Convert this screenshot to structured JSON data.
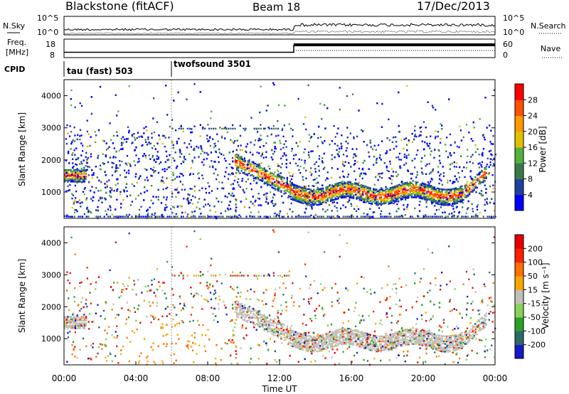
{
  "header": {
    "station": "Blackstone (fitACF)",
    "beam": "Beam 18",
    "date": "17/Dec/2013"
  },
  "noise_panel": {
    "left_label": "N.Sky",
    "right_label": "N.Search",
    "top_tick": "10^5",
    "bottom_tick": "10^0"
  },
  "freq_panel": {
    "label_line1": "Freq.",
    "label_line2": "[MHz]",
    "left_ticks": [
      "18",
      "8"
    ],
    "right_label": "Nave",
    "right_ticks": [
      "60",
      "0"
    ]
  },
  "cpid_panel": {
    "label": "CPID",
    "programs": [
      {
        "name": "tau (fast) 503",
        "start_hour": 0
      },
      {
        "name": "twofsound 3501",
        "start_hour": 6
      }
    ]
  },
  "chart_data": [
    {
      "type": "heatmap",
      "name": "power",
      "ylabel": "Slant Range [km]",
      "yticks": [
        "1000",
        "2000",
        "3000",
        "4000"
      ],
      "ylim": [
        180,
        4500
      ],
      "xlim": [
        0,
        24
      ],
      "colorbar": {
        "label": "Power [dB]",
        "ticks": [
          "4",
          "8",
          "12",
          "16",
          "20",
          "24",
          "28"
        ],
        "colors": [
          "#0000ff",
          "#2040a0",
          "#3a7a4a",
          "#55b040",
          "#e0c000",
          "#ff9800",
          "#ff5000",
          "#ff0000"
        ]
      }
    },
    {
      "type": "heatmap",
      "name": "velocity",
      "ylabel": "Slant Range [km]",
      "yticks": [
        "1000",
        "2000",
        "3000",
        "4000"
      ],
      "ylim": [
        180,
        4500
      ],
      "xlim": [
        0,
        24
      ],
      "xlabel": "Time UT",
      "xticks": [
        "00:00",
        "04:00",
        "08:00",
        "12:00",
        "16:00",
        "20:00",
        "00:00"
      ],
      "colorbar": {
        "label": "Velocity [m s⁻¹]",
        "ticks": [
          "200",
          "100",
          "50",
          "15",
          "-15",
          "-50",
          "-100",
          "-200"
        ],
        "colors": [
          "#1818c8",
          "#2c6a6a",
          "#28a028",
          "#8ad05a",
          "#c0c0b8",
          "#f7a800",
          "#ff7000",
          "#ff2000",
          "#e80000"
        ]
      }
    }
  ]
}
